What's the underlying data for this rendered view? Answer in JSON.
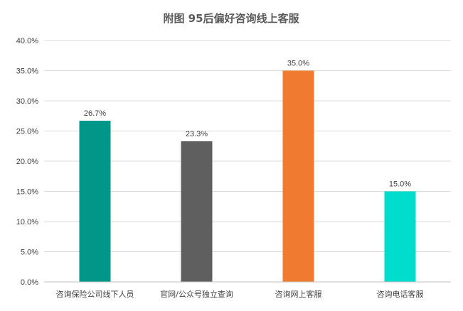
{
  "chart_data": {
    "type": "bar",
    "title": "附图 95后偏好咨询线上客服",
    "categories": [
      "咨询保险公司线下人员",
      "官网/公众号独立查询",
      "咨询网上客服",
      "咨询电话客服"
    ],
    "values": [
      26.7,
      23.3,
      35.0,
      15.0
    ],
    "value_labels": [
      "26.7%",
      "23.3%",
      "35.0%",
      "15.0%"
    ],
    "bar_colors": [
      "#009688",
      "#5f5f5f",
      "#ef7a30",
      "#00ddcc"
    ],
    "ylim": [
      0,
      40
    ],
    "yticks": [
      0,
      5,
      10,
      15,
      20,
      25,
      30,
      35,
      40
    ],
    "ytick_labels": [
      "0.0%",
      "5.0%",
      "10.0%",
      "15.0%",
      "20.0%",
      "25.0%",
      "30.0%",
      "35.0%",
      "40.0%"
    ],
    "xlabel": "",
    "ylabel": "",
    "grid": true,
    "legend": "none"
  }
}
